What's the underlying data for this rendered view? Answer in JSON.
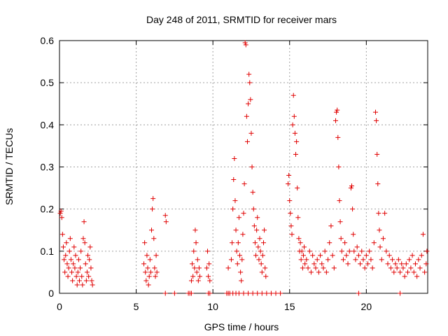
{
  "chart_data": {
    "type": "scatter",
    "title": "Day 248 of 2011, SRMTID for receiver mars",
    "xlabel": "GPS time / hours",
    "ylabel": "SRMTID / TECUs",
    "xlim": [
      0,
      24
    ],
    "ylim": [
      0,
      0.6
    ],
    "xticks": [
      0,
      5,
      10,
      15,
      20
    ],
    "yticks": [
      0,
      0.1,
      0.2,
      0.3,
      0.4,
      0.5,
      0.6
    ],
    "grid": true,
    "marker": "plus",
    "marker_color": "#e00000",
    "series": [
      {
        "points": [
          [
            0.05,
            0.19
          ],
          [
            0.1,
            0.195
          ],
          [
            0.15,
            0.18
          ],
          [
            0.2,
            0.14
          ],
          [
            0.25,
            0.11
          ],
          [
            0.3,
            0.08
          ],
          [
            0.35,
            0.05
          ],
          [
            0.4,
            0.09
          ],
          [
            0.45,
            0.12
          ],
          [
            0.5,
            0.07
          ],
          [
            0.55,
            0.04
          ],
          [
            0.6,
            0.06
          ],
          [
            0.65,
            0.1
          ],
          [
            0.7,
            0.13
          ],
          [
            0.75,
            0.08
          ],
          [
            0.8,
            0.05
          ],
          [
            0.85,
            0.03
          ],
          [
            0.9,
            0.07
          ],
          [
            0.95,
            0.11
          ],
          [
            1.0,
            0.06
          ],
          [
            1.05,
            0.09
          ],
          [
            1.1,
            0.04
          ],
          [
            1.15,
            0.02
          ],
          [
            1.2,
            0.05
          ],
          [
            1.25,
            0.08
          ],
          [
            1.3,
            0.03
          ],
          [
            1.35,
            0.06
          ],
          [
            1.4,
            0.1
          ],
          [
            1.45,
            0.04
          ],
          [
            1.5,
            0.02
          ],
          [
            1.55,
            0.13
          ],
          [
            1.6,
            0.17
          ],
          [
            1.65,
            0.12
          ],
          [
            1.7,
            0.07
          ],
          [
            1.75,
            0.03
          ],
          [
            1.8,
            0.05
          ],
          [
            1.85,
            0.09
          ],
          [
            1.9,
            0.04
          ],
          [
            1.95,
            0.08
          ],
          [
            2.0,
            0.11
          ],
          [
            2.05,
            0.06
          ],
          [
            2.1,
            0.03
          ],
          [
            2.15,
            0.02
          ],
          [
            5.5,
            0.07
          ],
          [
            5.55,
            0.12
          ],
          [
            5.6,
            0.05
          ],
          [
            5.65,
            0.03
          ],
          [
            5.7,
            0.09
          ],
          [
            5.75,
            0.06
          ],
          [
            5.8,
            0.02
          ],
          [
            5.85,
            0.04
          ],
          [
            5.9,
            0.08
          ],
          [
            5.95,
            0.05
          ],
          [
            6.0,
            0.15
          ],
          [
            6.05,
            0.2
          ],
          [
            6.1,
            0.225
          ],
          [
            6.15,
            0.13
          ],
          [
            6.2,
            0.06
          ],
          [
            6.25,
            0.04
          ],
          [
            6.3,
            0.09
          ],
          [
            6.35,
            0.05
          ],
          [
            6.9,
            0.185
          ],
          [
            6.95,
            0.17
          ],
          [
            8.6,
            0.03
          ],
          [
            8.65,
            0.07
          ],
          [
            8.7,
            0.04
          ],
          [
            8.75,
            0.1
          ],
          [
            8.8,
            0.06
          ],
          [
            8.85,
            0.15
          ],
          [
            8.9,
            0.12
          ],
          [
            8.95,
            0.05
          ],
          [
            9.0,
            0.08
          ],
          [
            9.05,
            0.03
          ],
          [
            9.1,
            0.06
          ],
          [
            9.15,
            0.04
          ],
          [
            9.6,
            0.06
          ],
          [
            9.65,
            0.1
          ],
          [
            9.7,
            0.04
          ],
          [
            9.75,
            0.07
          ],
          [
            9.8,
            0.03
          ],
          [
            11.0,
            0.06
          ],
          [
            11.2,
            0.08
          ],
          [
            11.25,
            0.12
          ],
          [
            11.3,
            0.2
          ],
          [
            11.35,
            0.27
          ],
          [
            11.4,
            0.32
          ],
          [
            11.45,
            0.22
          ],
          [
            11.5,
            0.15
          ],
          [
            11.55,
            0.1
          ],
          [
            11.6,
            0.07
          ],
          [
            11.65,
            0.12
          ],
          [
            11.7,
            0.18
          ],
          [
            11.75,
            0.09
          ],
          [
            11.8,
            0.05
          ],
          [
            11.85,
            0.03
          ],
          [
            11.9,
            0.08
          ],
          [
            11.95,
            0.14
          ],
          [
            12.0,
            0.19
          ],
          [
            12.05,
            0.26
          ],
          [
            12.1,
            0.595
          ],
          [
            12.15,
            0.59
          ],
          [
            12.2,
            0.42
          ],
          [
            12.25,
            0.36
          ],
          [
            12.3,
            0.45
          ],
          [
            12.35,
            0.52
          ],
          [
            12.4,
            0.5
          ],
          [
            12.45,
            0.46
          ],
          [
            12.5,
            0.38
          ],
          [
            12.55,
            0.3
          ],
          [
            12.6,
            0.24
          ],
          [
            12.65,
            0.2
          ],
          [
            12.7,
            0.16
          ],
          [
            12.75,
            0.12
          ],
          [
            12.8,
            0.09
          ],
          [
            12.85,
            0.15
          ],
          [
            12.9,
            0.18
          ],
          [
            12.95,
            0.11
          ],
          [
            13.0,
            0.08
          ],
          [
            13.05,
            0.13
          ],
          [
            13.1,
            0.1
          ],
          [
            13.15,
            0.07
          ],
          [
            13.2,
            0.05
          ],
          [
            13.25,
            0.09
          ],
          [
            13.3,
            0.12
          ],
          [
            13.35,
            0.15
          ],
          [
            13.4,
            0.06
          ],
          [
            13.45,
            0.04
          ],
          [
            14.9,
            0.26
          ],
          [
            14.95,
            0.28
          ],
          [
            15.0,
            0.22
          ],
          [
            15.05,
            0.19
          ],
          [
            15.1,
            0.16
          ],
          [
            15.15,
            0.14
          ],
          [
            15.2,
            0.4
          ],
          [
            15.25,
            0.47
          ],
          [
            15.3,
            0.42
          ],
          [
            15.35,
            0.38
          ],
          [
            15.4,
            0.33
          ],
          [
            15.45,
            0.36
          ],
          [
            15.5,
            0.25
          ],
          [
            15.55,
            0.18
          ],
          [
            15.6,
            0.13
          ],
          [
            15.65,
            0.1
          ],
          [
            15.7,
            0.12
          ],
          [
            15.75,
            0.08
          ],
          [
            15.8,
            0.1
          ],
          [
            15.85,
            0.06
          ],
          [
            15.9,
            0.09
          ],
          [
            15.95,
            0.11
          ],
          [
            16.0,
            0.07
          ],
          [
            16.1,
            0.08
          ],
          [
            16.2,
            0.06
          ],
          [
            16.3,
            0.1
          ],
          [
            16.4,
            0.05
          ],
          [
            16.5,
            0.09
          ],
          [
            16.6,
            0.07
          ],
          [
            16.7,
            0.06
          ],
          [
            16.8,
            0.08
          ],
          [
            16.9,
            0.05
          ],
          [
            17.0,
            0.09
          ],
          [
            17.1,
            0.07
          ],
          [
            17.2,
            0.06
          ],
          [
            17.3,
            0.1
          ],
          [
            17.4,
            0.05
          ],
          [
            17.5,
            0.08
          ],
          [
            17.6,
            0.12
          ],
          [
            17.7,
            0.16
          ],
          [
            17.8,
            0.09
          ],
          [
            17.9,
            0.06
          ],
          [
            18.0,
            0.41
          ],
          [
            18.05,
            0.43
          ],
          [
            18.1,
            0.435
          ],
          [
            18.15,
            0.37
          ],
          [
            18.2,
            0.3
          ],
          [
            18.25,
            0.22
          ],
          [
            18.3,
            0.17
          ],
          [
            18.35,
            0.13
          ],
          [
            18.4,
            0.1
          ],
          [
            18.5,
            0.08
          ],
          [
            18.6,
            0.12
          ],
          [
            18.7,
            0.09
          ],
          [
            18.8,
            0.07
          ],
          [
            18.9,
            0.1
          ],
          [
            19.0,
            0.25
          ],
          [
            19.05,
            0.255
          ],
          [
            19.1,
            0.2
          ],
          [
            19.15,
            0.14
          ],
          [
            19.2,
            0.1
          ],
          [
            19.3,
            0.08
          ],
          [
            19.4,
            0.11
          ],
          [
            19.5,
            0.09
          ],
          [
            19.6,
            0.07
          ],
          [
            19.7,
            0.1
          ],
          [
            19.8,
            0.08
          ],
          [
            19.9,
            0.06
          ],
          [
            20.0,
            0.09
          ],
          [
            20.1,
            0.07
          ],
          [
            20.2,
            0.1
          ],
          [
            20.3,
            0.08
          ],
          [
            20.4,
            0.06
          ],
          [
            20.5,
            0.12
          ],
          [
            20.6,
            0.43
          ],
          [
            20.65,
            0.41
          ],
          [
            20.7,
            0.33
          ],
          [
            20.75,
            0.26
          ],
          [
            20.8,
            0.19
          ],
          [
            20.85,
            0.15
          ],
          [
            20.9,
            0.11
          ],
          [
            21.0,
            0.08
          ],
          [
            21.1,
            0.13
          ],
          [
            21.2,
            0.19
          ],
          [
            21.3,
            0.1
          ],
          [
            21.4,
            0.07
          ],
          [
            21.5,
            0.09
          ],
          [
            21.6,
            0.06
          ],
          [
            21.7,
            0.08
          ],
          [
            21.8,
            0.05
          ],
          [
            21.9,
            0.07
          ],
          [
            22.0,
            0.06
          ],
          [
            22.1,
            0.08
          ],
          [
            22.2,
            0.05
          ],
          [
            22.3,
            0.07
          ],
          [
            22.4,
            0.06
          ],
          [
            22.5,
            0.04
          ],
          [
            22.6,
            0.07
          ],
          [
            22.7,
            0.05
          ],
          [
            22.8,
            0.08
          ],
          [
            22.9,
            0.06
          ],
          [
            23.0,
            0.09
          ],
          [
            23.1,
            0.05
          ],
          [
            23.2,
            0.07
          ],
          [
            23.3,
            0.04
          ],
          [
            23.4,
            0.08
          ],
          [
            23.5,
            0.06
          ],
          [
            23.6,
            0.09
          ],
          [
            23.7,
            0.14
          ],
          [
            23.8,
            0.05
          ],
          [
            23.9,
            0.07
          ],
          [
            23.95,
            0.1
          ],
          [
            8.4,
            0.0
          ],
          [
            8.5,
            0.0
          ],
          [
            8.6,
            0.0
          ],
          [
            9.7,
            0.0
          ],
          [
            9.8,
            0.0
          ],
          [
            10.9,
            0.0
          ],
          [
            11.0,
            0.0
          ],
          [
            11.1,
            0.0
          ],
          [
            11.3,
            0.0
          ],
          [
            11.5,
            0.0
          ],
          [
            11.7,
            0.0
          ],
          [
            12.0,
            0.0
          ],
          [
            12.3,
            0.0
          ],
          [
            12.6,
            0.0
          ],
          [
            12.9,
            0.0
          ],
          [
            13.2,
            0.0
          ],
          [
            13.5,
            0.0
          ],
          [
            13.8,
            0.0
          ],
          [
            14.1,
            0.0
          ],
          [
            14.4,
            0.0
          ],
          [
            6.9,
            0.0
          ],
          [
            7.5,
            0.0
          ],
          [
            19.5,
            0.0
          ],
          [
            22.2,
            0.0
          ]
        ]
      }
    ]
  }
}
